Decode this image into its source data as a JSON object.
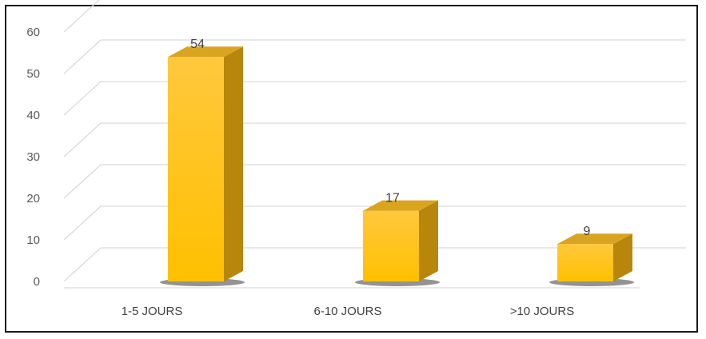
{
  "chart_data": {
    "type": "bar",
    "title": "",
    "xlabel": "",
    "ylabel": "",
    "categories": [
      "1-5 JOURS",
      "6-10 JOURS",
      ">10 JOURS"
    ],
    "values": [
      54,
      17,
      9
    ],
    "data_labels": [
      "54",
      "17",
      "9"
    ],
    "ylim": [
      0,
      60
    ],
    "yticks": [
      "0",
      "10",
      "20",
      "30",
      "40",
      "50",
      "60"
    ],
    "grid": true,
    "legend": "none",
    "style": "3d",
    "colors": {
      "bar_front": "#ffc000",
      "bar_side": "#b8860b",
      "bar_top": "#d9a520",
      "grid": "#d9d9d9"
    }
  }
}
